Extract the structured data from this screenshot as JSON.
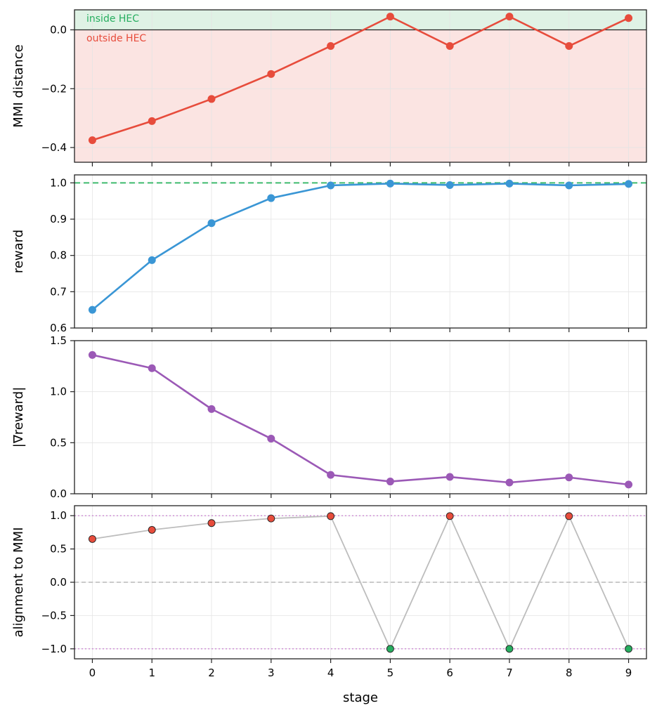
{
  "chart_data": [
    {
      "type": "line",
      "ylabel": "MMI distance",
      "x": [
        0,
        1,
        2,
        3,
        4,
        5,
        6,
        7,
        8,
        9
      ],
      "values": [
        -0.375,
        -0.31,
        -0.235,
        -0.15,
        -0.055,
        0.045,
        -0.055,
        0.045,
        -0.055,
        0.04
      ],
      "ylim": [
        -0.45,
        0.068
      ],
      "yticks": [
        0.0,
        -0.2,
        -0.4
      ],
      "ytick_labels": [
        "0.0",
        "−0.2",
        "−0.4"
      ],
      "color": "#e74c3c",
      "regions": [
        {
          "name": "inside HEC",
          "from": 0.0,
          "to": 0.068,
          "color": "#dff2e5",
          "label_color": "#27ae60"
        },
        {
          "name": "outside HEC",
          "from": -0.45,
          "to": 0.0,
          "color": "#fbe4e2",
          "label_color": "#e74c3c"
        }
      ],
      "annotations": [
        "inside HEC",
        "outside HEC"
      ],
      "reference_line": 0.0
    },
    {
      "type": "line",
      "ylabel": "reward",
      "x": [
        0,
        1,
        2,
        3,
        4,
        5,
        6,
        7,
        8,
        9
      ],
      "values": [
        0.65,
        0.787,
        0.889,
        0.958,
        0.993,
        0.998,
        0.994,
        0.998,
        0.993,
        0.997
      ],
      "ylim": [
        0.6,
        1.022
      ],
      "yticks": [
        0.6,
        0.7,
        0.8,
        0.9,
        1.0
      ],
      "ytick_labels": [
        "0.6",
        "0.7",
        "0.8",
        "0.9",
        "1.0"
      ],
      "color": "#3a96d5",
      "reference_line": 1.0,
      "reference_color": "#3dbb6d"
    },
    {
      "type": "line",
      "ylabel": "|∇reward|",
      "x": [
        0,
        1,
        2,
        3,
        4,
        5,
        6,
        7,
        8,
        9
      ],
      "values": [
        1.36,
        1.23,
        0.83,
        0.54,
        0.185,
        0.12,
        0.165,
        0.11,
        0.16,
        0.09
      ],
      "ylim": [
        0.0,
        1.5
      ],
      "yticks": [
        0.0,
        0.5,
        1.0,
        1.5
      ],
      "ytick_labels": [
        "0.0",
        "0.5",
        "1.0",
        "1.5"
      ],
      "color": "#9b59b6"
    },
    {
      "type": "scatter",
      "ylabel": "alignment to MMI",
      "xlabel": "stage",
      "x": [
        0,
        1,
        2,
        3,
        4,
        5,
        6,
        7,
        8,
        9
      ],
      "values": [
        0.65,
        0.787,
        0.889,
        0.958,
        0.993,
        -1.0,
        0.994,
        -1.0,
        0.993,
        -1.0
      ],
      "ylim": [
        -1.15,
        1.15
      ],
      "yticks": [
        1.0,
        0.5,
        0.0,
        -0.5,
        -1.0
      ],
      "ytick_labels": [
        "1.0",
        "0.5",
        "0.0",
        "−0.5",
        "−1.0"
      ],
      "positive_color": "#e74c3c",
      "negative_color": "#27ae60",
      "line_color": "#bdbdbd",
      "reference_lines": [
        1.0,
        0.0,
        -1.0
      ]
    }
  ],
  "xticks": [
    0,
    1,
    2,
    3,
    4,
    5,
    6,
    7,
    8,
    9
  ],
  "xtick_labels": [
    "0",
    "1",
    "2",
    "3",
    "4",
    "5",
    "6",
    "7",
    "8",
    "9"
  ],
  "xlim": [
    -0.3,
    9.3
  ],
  "xlabel": "stage"
}
